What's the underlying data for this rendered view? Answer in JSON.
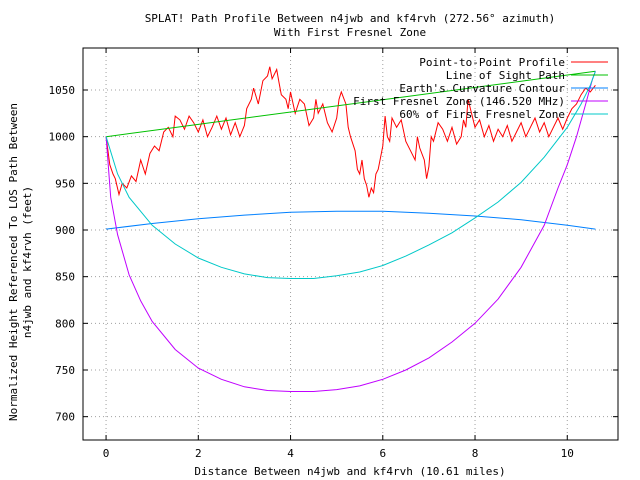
{
  "chart_data": {
    "type": "line",
    "title": "SPLAT! Path Profile Between n4jwb and kf4rvh (272.56° azimuth)",
    "subtitle": "With First Fresnel Zone",
    "xlabel": "Distance Between n4jwb and kf4rvh (10.61 miles)",
    "ylabel_line1": "Normalized Height Referenced To LOS Path Between",
    "ylabel_line2": "n4jwb and kf4rvh (feet)",
    "xlim": [
      -0.5,
      11.1
    ],
    "ylim": [
      675,
      1095
    ],
    "xticks": [
      0,
      2,
      4,
      6,
      8,
      10
    ],
    "xtick_labels": [
      "0",
      "2",
      "4",
      "6",
      "8",
      "10"
    ],
    "yticks": [
      700,
      750,
      800,
      850,
      900,
      950,
      1000,
      1050
    ],
    "ytick_labels": [
      "700",
      "750",
      "800",
      "850",
      "900",
      "950",
      "1000",
      "1050"
    ],
    "grid": true,
    "legend_position": "top-right",
    "series": [
      {
        "name": "Point-to-Point Profile",
        "color": "#ff0000",
        "points": [
          [
            0,
            1000
          ],
          [
            0.08,
            970
          ],
          [
            0.15,
            960
          ],
          [
            0.2,
            955
          ],
          [
            0.28,
            938
          ],
          [
            0.35,
            950
          ],
          [
            0.45,
            945
          ],
          [
            0.55,
            958
          ],
          [
            0.65,
            952
          ],
          [
            0.75,
            975
          ],
          [
            0.85,
            960
          ],
          [
            0.95,
            982
          ],
          [
            1.05,
            990
          ],
          [
            1.15,
            985
          ],
          [
            1.25,
            1005
          ],
          [
            1.35,
            1010
          ],
          [
            1.45,
            1000
          ],
          [
            1.5,
            1022
          ],
          [
            1.6,
            1018
          ],
          [
            1.7,
            1008
          ],
          [
            1.8,
            1022
          ],
          [
            1.9,
            1015
          ],
          [
            2.0,
            1005
          ],
          [
            2.1,
            1018
          ],
          [
            2.2,
            1000
          ],
          [
            2.3,
            1010
          ],
          [
            2.4,
            1022
          ],
          [
            2.5,
            1008
          ],
          [
            2.6,
            1020
          ],
          [
            2.7,
            1002
          ],
          [
            2.8,
            1015
          ],
          [
            2.9,
            1000
          ],
          [
            3.0,
            1012
          ],
          [
            3.05,
            1030
          ],
          [
            3.15,
            1040
          ],
          [
            3.2,
            1052
          ],
          [
            3.3,
            1035
          ],
          [
            3.4,
            1060
          ],
          [
            3.5,
            1065
          ],
          [
            3.55,
            1075
          ],
          [
            3.6,
            1062
          ],
          [
            3.7,
            1072
          ],
          [
            3.75,
            1058
          ],
          [
            3.8,
            1045
          ],
          [
            3.9,
            1040
          ],
          [
            3.95,
            1030
          ],
          [
            4.0,
            1048
          ],
          [
            4.1,
            1025
          ],
          [
            4.2,
            1040
          ],
          [
            4.3,
            1035
          ],
          [
            4.4,
            1012
          ],
          [
            4.5,
            1020
          ],
          [
            4.55,
            1040
          ],
          [
            4.6,
            1025
          ],
          [
            4.7,
            1035
          ],
          [
            4.8,
            1015
          ],
          [
            4.9,
            1005
          ],
          [
            5.0,
            1020
          ],
          [
            5.05,
            1040
          ],
          [
            5.1,
            1048
          ],
          [
            5.2,
            1035
          ],
          [
            5.25,
            1010
          ],
          [
            5.3,
            1000
          ],
          [
            5.4,
            985
          ],
          [
            5.45,
            965
          ],
          [
            5.5,
            960
          ],
          [
            5.55,
            975
          ],
          [
            5.6,
            955
          ],
          [
            5.65,
            948
          ],
          [
            5.7,
            935
          ],
          [
            5.75,
            945
          ],
          [
            5.8,
            940
          ],
          [
            5.85,
            960
          ],
          [
            5.9,
            965
          ],
          [
            6.0,
            990
          ],
          [
            6.05,
            1022
          ],
          [
            6.1,
            1000
          ],
          [
            6.15,
            995
          ],
          [
            6.2,
            1020
          ],
          [
            6.3,
            1010
          ],
          [
            6.4,
            1018
          ],
          [
            6.5,
            995
          ],
          [
            6.6,
            985
          ],
          [
            6.7,
            975
          ],
          [
            6.75,
            1000
          ],
          [
            6.8,
            988
          ],
          [
            6.9,
            975
          ],
          [
            6.95,
            955
          ],
          [
            7.0,
            968
          ],
          [
            7.05,
            1000
          ],
          [
            7.1,
            995
          ],
          [
            7.2,
            1015
          ],
          [
            7.3,
            1008
          ],
          [
            7.4,
            995
          ],
          [
            7.5,
            1010
          ],
          [
            7.6,
            992
          ],
          [
            7.7,
            1000
          ],
          [
            7.75,
            1018
          ],
          [
            7.8,
            1010
          ],
          [
            7.85,
            1040
          ],
          [
            7.9,
            1030
          ],
          [
            8.0,
            1010
          ],
          [
            8.1,
            1018
          ],
          [
            8.2,
            1000
          ],
          [
            8.3,
            1012
          ],
          [
            8.4,
            995
          ],
          [
            8.5,
            1008
          ],
          [
            8.6,
            1000
          ],
          [
            8.7,
            1012
          ],
          [
            8.8,
            995
          ],
          [
            8.9,
            1005
          ],
          [
            9.0,
            1015
          ],
          [
            9.1,
            1000
          ],
          [
            9.2,
            1010
          ],
          [
            9.3,
            1020
          ],
          [
            9.4,
            1005
          ],
          [
            9.5,
            1015
          ],
          [
            9.6,
            1000
          ],
          [
            9.7,
            1010
          ],
          [
            9.8,
            1020
          ],
          [
            9.9,
            1008
          ],
          [
            10.0,
            1020
          ],
          [
            10.1,
            1030
          ],
          [
            10.2,
            1035
          ],
          [
            10.3,
            1045
          ],
          [
            10.4,
            1052
          ],
          [
            10.5,
            1048
          ],
          [
            10.61,
            1055
          ]
        ]
      },
      {
        "name": "Line of Sight Path",
        "color": "#00c000",
        "points": [
          [
            0,
            1000
          ],
          [
            10.61,
            1070
          ]
        ]
      },
      {
        "name": "Earth's Curvature Contour",
        "color": "#0080ff",
        "points": [
          [
            0,
            901
          ],
          [
            1,
            907
          ],
          [
            2,
            912
          ],
          [
            3,
            916
          ],
          [
            4,
            919
          ],
          [
            5,
            920
          ],
          [
            6,
            920
          ],
          [
            7,
            918
          ],
          [
            8,
            915
          ],
          [
            9,
            911
          ],
          [
            10,
            905
          ],
          [
            10.61,
            901
          ]
        ]
      },
      {
        "name": "First Fresnel Zone (146.520 MHz)",
        "color": "#c000ff",
        "points": [
          [
            0,
            1000
          ],
          [
            0.1,
            935
          ],
          [
            0.25,
            895
          ],
          [
            0.5,
            852
          ],
          [
            0.75,
            824
          ],
          [
            1,
            802
          ],
          [
            1.5,
            772
          ],
          [
            2,
            752
          ],
          [
            2.5,
            740
          ],
          [
            3,
            732
          ],
          [
            3.5,
            728
          ],
          [
            4,
            727
          ],
          [
            4.5,
            727
          ],
          [
            5,
            729
          ],
          [
            5.5,
            733
          ],
          [
            6,
            740
          ],
          [
            6.5,
            750
          ],
          [
            7,
            763
          ],
          [
            7.5,
            780
          ],
          [
            8,
            800
          ],
          [
            8.5,
            826
          ],
          [
            9,
            860
          ],
          [
            9.5,
            905
          ],
          [
            9.8,
            945
          ],
          [
            10,
            970
          ],
          [
            10.2,
            1000
          ],
          [
            10.4,
            1035
          ],
          [
            10.55,
            1062
          ],
          [
            10.61,
            1070
          ]
        ]
      },
      {
        "name": "60% of First Fresnel Zone",
        "color": "#00c8c8",
        "points": [
          [
            0,
            1000
          ],
          [
            0.25,
            960
          ],
          [
            0.5,
            935
          ],
          [
            1,
            905
          ],
          [
            1.5,
            885
          ],
          [
            2,
            870
          ],
          [
            2.5,
            860
          ],
          [
            3,
            853
          ],
          [
            3.5,
            849
          ],
          [
            4,
            848
          ],
          [
            4.5,
            848
          ],
          [
            5,
            851
          ],
          [
            5.5,
            855
          ],
          [
            6,
            862
          ],
          [
            6.5,
            872
          ],
          [
            7,
            884
          ],
          [
            7.5,
            897
          ],
          [
            8,
            913
          ],
          [
            8.5,
            930
          ],
          [
            9,
            951
          ],
          [
            9.5,
            978
          ],
          [
            10,
            1010
          ],
          [
            10.3,
            1035
          ],
          [
            10.5,
            1055
          ],
          [
            10.61,
            1070
          ]
        ]
      }
    ]
  }
}
